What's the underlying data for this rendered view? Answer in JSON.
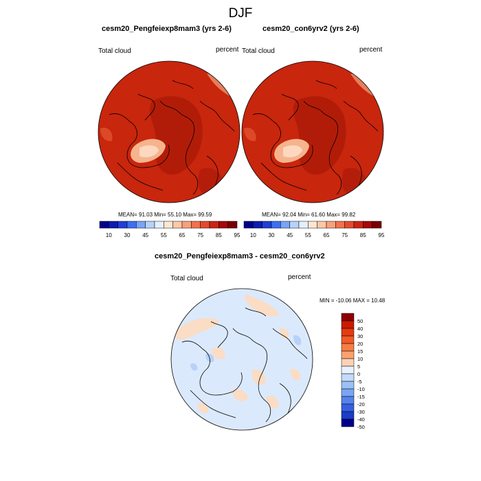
{
  "figure": {
    "title": "DJF"
  },
  "panels": [
    {
      "title": "cesm20_Pengfeiexp8mam3 (yrs 2-6)",
      "variable": "Total cloud",
      "units": "percent",
      "stats": "MEAN=  91.03  Min=  55.10  Max=  99.59",
      "mean": 91.03,
      "min": 55.1,
      "max": 99.59,
      "fill_color": "#c8260d"
    },
    {
      "title": "cesm20_con6yrv2 (yrs 2-6)",
      "variable": "Total cloud",
      "units": "percent",
      "stats": "MEAN=  92.04  Min=  61.60  Max=  99.82",
      "mean": 92.04,
      "min": 61.6,
      "max": 99.82,
      "fill_color": "#c8260d"
    }
  ],
  "abs_colorbar": {
    "colors": [
      "#00008b",
      "#0d1bb0",
      "#1f3fd6",
      "#3d6ff0",
      "#78a4f8",
      "#b6d2fb",
      "#e4f0fd",
      "#ffe6d2",
      "#fcc8a6",
      "#f8a07a",
      "#f07250",
      "#e44a2e",
      "#cc2412",
      "#a40a06",
      "#7a0000"
    ],
    "labels": [
      "10",
      "30",
      "45",
      "55",
      "65",
      "75",
      "85",
      "95"
    ]
  },
  "diff_panel": {
    "title": "cesm20_Pengfeiexp8mam3 - cesm20_con6yrv2",
    "variable": "Total cloud",
    "units": "percent",
    "minmax": "MIN = -10.06 MAX =  10.48",
    "min": -10.06,
    "max": 10.48,
    "fill_color": "#dbe9fc"
  },
  "diff_colorbar": {
    "colors": [
      "#8b0000",
      "#cc1a00",
      "#e53a10",
      "#f25a26",
      "#f77d45",
      "#faa270",
      "#fcd2b6",
      "#e8f1fe",
      "#c4dafa",
      "#9cbff6",
      "#7aa5f2",
      "#5583ec",
      "#3660e0",
      "#1a3cc8",
      "#00008b"
    ],
    "labels": [
      "50",
      "40",
      "30",
      "20",
      "15",
      "10",
      "5",
      "0",
      "-5",
      "-10",
      "-15",
      "-20",
      "-30",
      "-40",
      "-50"
    ]
  }
}
